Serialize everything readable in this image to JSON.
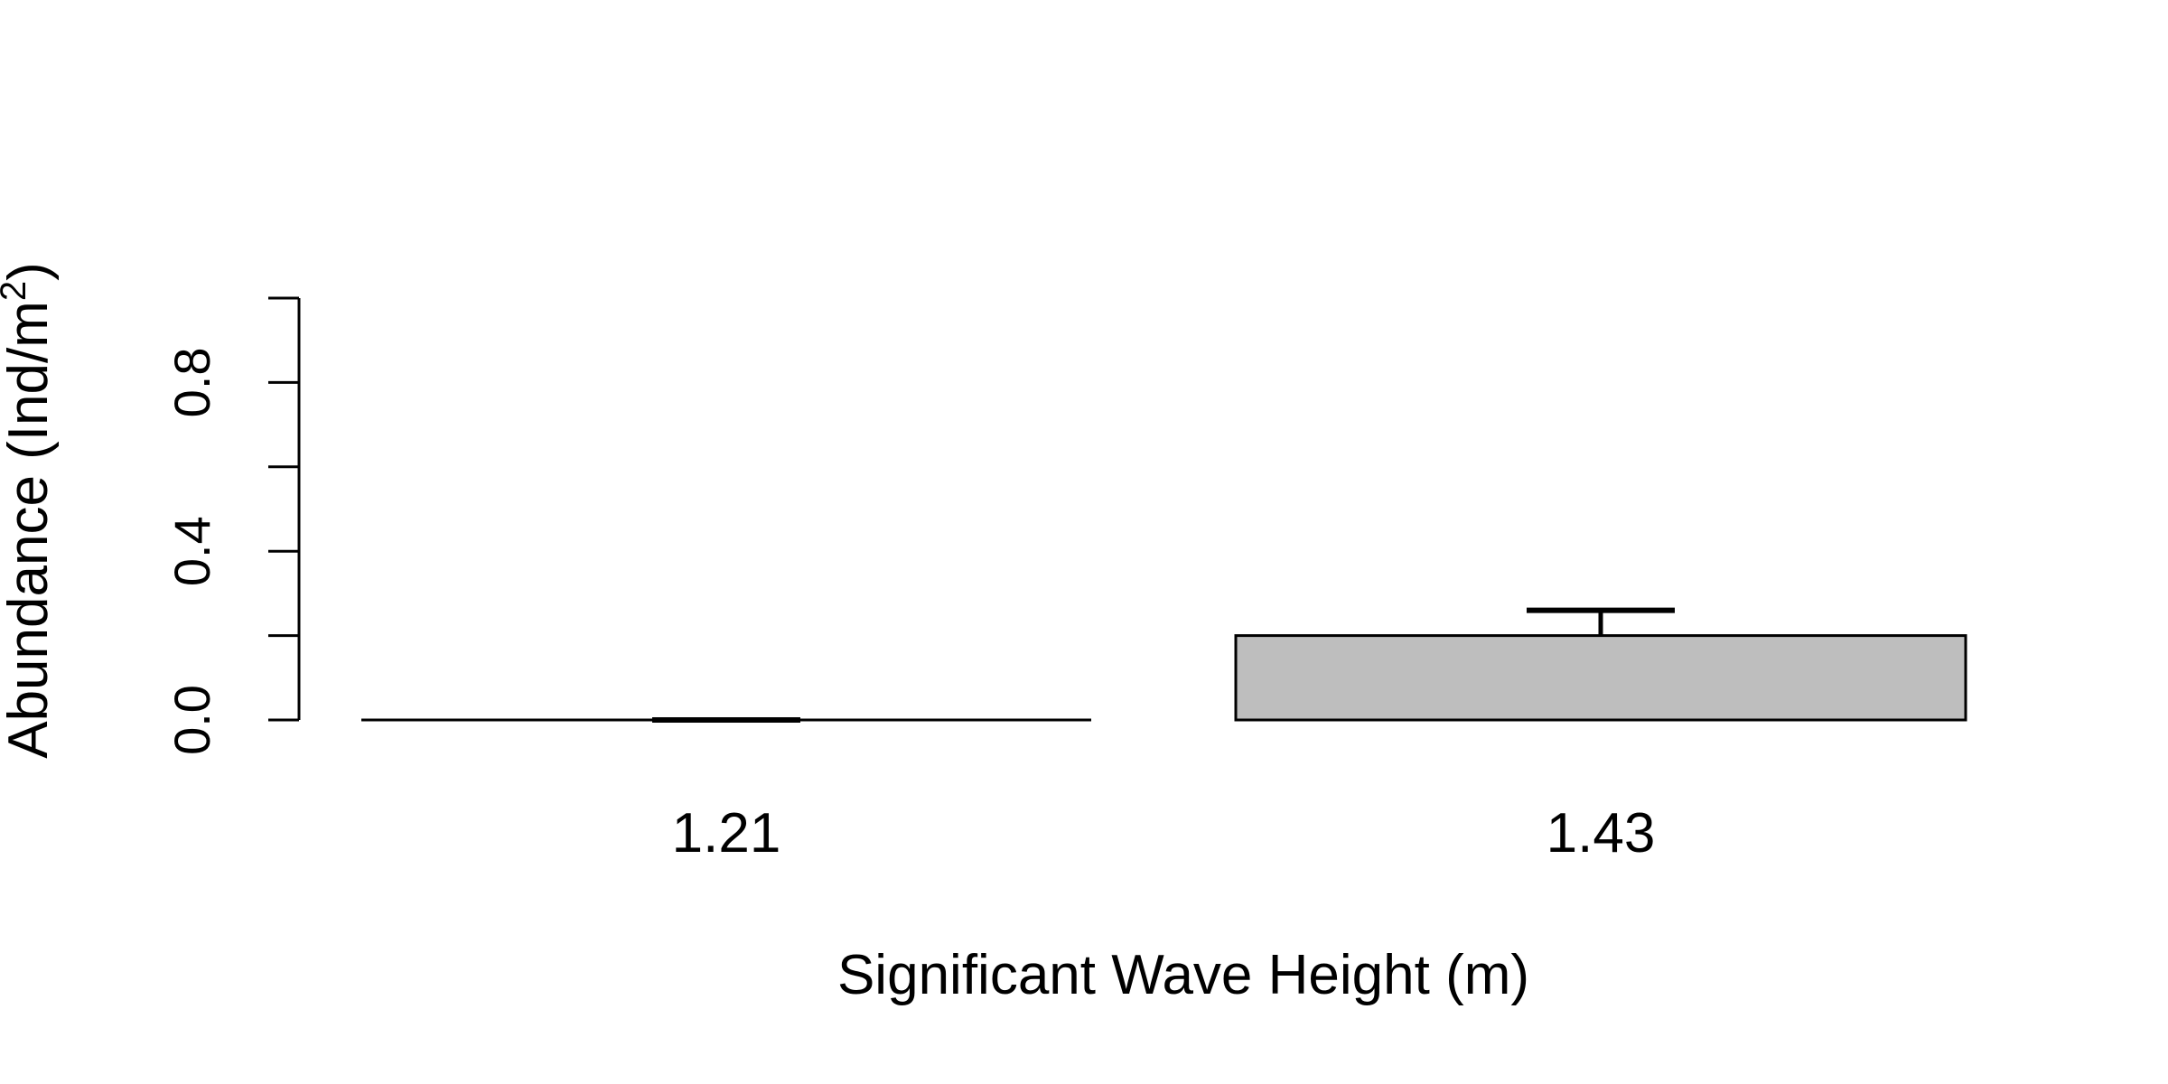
{
  "chart_data": {
    "type": "bar",
    "categories": [
      "1.21",
      "1.43"
    ],
    "values": [
      0.0,
      0.2
    ],
    "error_upper": [
      0.0,
      0.26
    ],
    "xlabel": "Significant Wave Height (m)",
    "ylabel_main": "Abundance (Ind/m",
    "ylabel_sup": "2",
    "ylabel_close": ")",
    "yticks": [
      0.0,
      0.2,
      0.4,
      0.6,
      0.8,
      1.0
    ],
    "ytick_labels": [
      "0.0",
      "",
      "0.4",
      "",
      "0.8",
      ""
    ],
    "ylim": [
      0,
      1.0
    ],
    "grid": false,
    "legend": "none",
    "bar_fill": "#bebebe",
    "bar_stroke": "#000000"
  }
}
